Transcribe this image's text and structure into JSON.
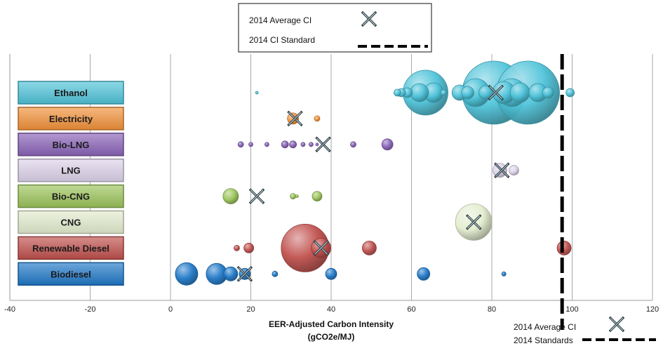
{
  "chart_data": {
    "type": "scatter",
    "subtype": "bubble",
    "xlabel_line1": "EER-Adjusted Carbon Intensity",
    "xlabel_line2": "(gCO2e/MJ)",
    "xlim": [
      -40,
      120
    ],
    "x_ticks": [
      "-40",
      "-20",
      "0",
      "20",
      "40",
      "60",
      "80",
      "100",
      "120"
    ],
    "grid": true,
    "categories": [
      "Ethanol",
      "Electricity",
      "Bio-LNG",
      "LNG",
      "Bio-CNG",
      "CNG",
      "Renewable Diesel",
      "Biodiesel"
    ],
    "category_colors": [
      "#4fc3d9",
      "#f2923a",
      "#8a63b8",
      "#ddd3ea",
      "#9cc55a",
      "#e4edcf",
      "#c0504d",
      "#1f78c8"
    ],
    "series": [
      {
        "name": "Ethanol",
        "color": "#4fc3d9",
        "points": [
          {
            "x": 21.5,
            "size": 2
          },
          {
            "x": 56.5,
            "size": 5
          },
          {
            "x": 57.5,
            "size": 6
          },
          {
            "x": 59,
            "size": 7
          },
          {
            "x": 62,
            "size": 13
          },
          {
            "x": 63.5,
            "size": 32
          },
          {
            "x": 65.5,
            "size": 14
          },
          {
            "x": 68,
            "size": 4
          },
          {
            "x": 72,
            "size": 11
          },
          {
            "x": 74,
            "size": 9
          },
          {
            "x": 76,
            "size": 20
          },
          {
            "x": 78.5,
            "size": 10
          },
          {
            "x": 80.5,
            "size": 45
          },
          {
            "x": 83,
            "size": 16
          },
          {
            "x": 85,
            "size": 20
          },
          {
            "x": 87,
            "size": 14
          },
          {
            "x": 89,
            "size": 45
          },
          {
            "x": 91.5,
            "size": 13
          },
          {
            "x": 94,
            "size": 8
          },
          {
            "x": 99.5,
            "size": 6
          }
        ]
      },
      {
        "name": "Electricity",
        "color": "#f2923a",
        "points": [
          {
            "x": 30.5,
            "size": 8
          },
          {
            "x": 36.5,
            "size": 4
          }
        ]
      },
      {
        "name": "Bio-LNG",
        "color": "#8a63b8",
        "points": [
          {
            "x": 17.5,
            "size": 4
          },
          {
            "x": 20,
            "size": 3
          },
          {
            "x": 24,
            "size": 3
          },
          {
            "x": 28.5,
            "size": 5
          },
          {
            "x": 30.5,
            "size": 5
          },
          {
            "x": 33,
            "size": 3
          },
          {
            "x": 35,
            "size": 3
          },
          {
            "x": 36.5,
            "size": 2
          },
          {
            "x": 45.5,
            "size": 4
          },
          {
            "x": 54,
            "size": 8
          }
        ]
      },
      {
        "name": "LNG",
        "color": "#ddd3ea",
        "points": [
          {
            "x": 82,
            "size": 10
          },
          {
            "x": 85.5,
            "size": 7
          }
        ]
      },
      {
        "name": "Bio-CNG",
        "color": "#9cc55a",
        "points": [
          {
            "x": 15,
            "size": 11
          },
          {
            "x": 30.5,
            "size": 4
          },
          {
            "x": 31.5,
            "size": 2
          },
          {
            "x": 36.5,
            "size": 7
          }
        ]
      },
      {
        "name": "CNG",
        "color": "#e4edcf",
        "points": [
          {
            "x": 75.5,
            "size": 26
          }
        ]
      },
      {
        "name": "Renewable Diesel",
        "color": "#c0504d",
        "points": [
          {
            "x": 16.5,
            "size": 4
          },
          {
            "x": 19.5,
            "size": 7
          },
          {
            "x": 33.5,
            "size": 34
          },
          {
            "x": 37.5,
            "size": 14
          },
          {
            "x": 49.5,
            "size": 10
          },
          {
            "x": 98,
            "size": 10
          }
        ]
      },
      {
        "name": "Biodiesel",
        "color": "#1f78c8",
        "points": [
          {
            "x": 4,
            "size": 16
          },
          {
            "x": 11.5,
            "size": 15
          },
          {
            "x": 15,
            "size": 10
          },
          {
            "x": 18.5,
            "size": 8
          },
          {
            "x": 26,
            "size": 4
          },
          {
            "x": 40,
            "size": 8
          },
          {
            "x": 63,
            "size": 9
          },
          {
            "x": 83,
            "size": 3
          }
        ]
      }
    ],
    "average_ci_2014": [
      {
        "category": "Ethanol",
        "x": 81
      },
      {
        "category": "Electricity",
        "x": 31
      },
      {
        "category": "Bio-LNG",
        "x": 38
      },
      {
        "category": "LNG",
        "x": 82.5
      },
      {
        "category": "Bio-CNG",
        "x": 21.5
      },
      {
        "category": "CNG",
        "x": 75.5
      },
      {
        "category": "Renewable Diesel",
        "x": 37.5
      },
      {
        "category": "Biodiesel",
        "x": 18.5
      }
    ],
    "ci_standard_2014": 97.5,
    "legend_top": {
      "average_label": "2014 Average CI",
      "standard_label": "2014 CI Standard"
    },
    "legend_bottom": {
      "average_label": "2014 Average CI",
      "standard_label": "2014 Standards"
    }
  }
}
